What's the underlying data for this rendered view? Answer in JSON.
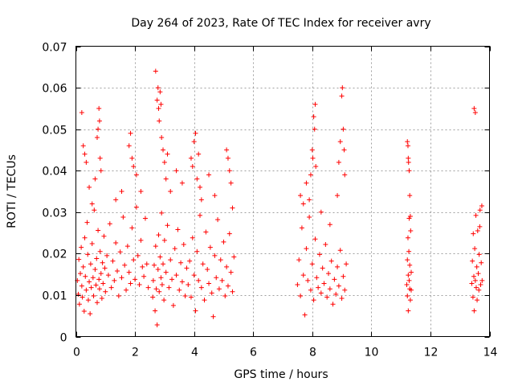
{
  "chart_data": {
    "type": "scatter",
    "title": "Day 264 of 2023, Rate Of TEC Index for receiver avry",
    "xlabel": "GPS time / hours",
    "ylabel": "ROTI / TECUs",
    "xlim": [
      0,
      14
    ],
    "ylim": [
      0,
      0.07
    ],
    "xticks": [
      0,
      2,
      4,
      6,
      8,
      10,
      12,
      14
    ],
    "xtick_labels": [
      "0",
      "2",
      "4",
      "6",
      "8",
      "10",
      "12",
      "14"
    ],
    "yticks": [
      0,
      0.01,
      0.02,
      0.03,
      0.04,
      0.05,
      0.06,
      0.07
    ],
    "ytick_labels": [
      "0",
      "0.01",
      "0.02",
      "0.03",
      "0.04",
      "0.05",
      "0.06",
      "0.07"
    ],
    "grid": true,
    "marker": "+",
    "color": "#ff0000",
    "series": [
      {
        "name": "ROTI",
        "points": [
          [
            0.05,
            0.0135
          ],
          [
            0.08,
            0.0102
          ],
          [
            0.1,
            0.0186
          ],
          [
            0.12,
            0.0078
          ],
          [
            0.15,
            0.0152
          ],
          [
            0.18,
            0.0215
          ],
          [
            0.2,
            0.0122
          ],
          [
            0.22,
            0.0095
          ],
          [
            0.25,
            0.0168
          ],
          [
            0.28,
            0.0061
          ],
          [
            0.3,
            0.0238
          ],
          [
            0.32,
            0.0145
          ],
          [
            0.35,
            0.0112
          ],
          [
            0.38,
            0.0275
          ],
          [
            0.4,
            0.0198
          ],
          [
            0.42,
            0.0088
          ],
          [
            0.45,
            0.0132
          ],
          [
            0.48,
            0.0055
          ],
          [
            0.5,
            0.0175
          ],
          [
            0.52,
            0.0118
          ],
          [
            0.55,
            0.0224
          ],
          [
            0.58,
            0.0142
          ],
          [
            0.6,
            0.0098
          ],
          [
            0.62,
            0.0305
          ],
          [
            0.65,
            0.0162
          ],
          [
            0.68,
            0.0124
          ],
          [
            0.7,
            0.0188
          ],
          [
            0.72,
            0.0082
          ],
          [
            0.75,
            0.0256
          ],
          [
            0.78,
            0.0138
          ],
          [
            0.8,
            0.0115
          ],
          [
            0.82,
            0.0205
          ],
          [
            0.85,
            0.0152
          ],
          [
            0.88,
            0.0092
          ],
          [
            0.9,
            0.0178
          ],
          [
            0.92,
            0.0128
          ],
          [
            0.95,
            0.0242
          ],
          [
            0.98,
            0.0165
          ],
          [
            1.0,
            0.0108
          ],
          [
            1.05,
            0.0195
          ],
          [
            1.1,
            0.0148
          ],
          [
            1.15,
            0.0272
          ],
          [
            1.2,
            0.0118
          ],
          [
            1.25,
            0.0182
          ],
          [
            1.3,
            0.0135
          ],
          [
            1.35,
            0.0226
          ],
          [
            1.4,
            0.0158
          ],
          [
            1.45,
            0.0098
          ],
          [
            1.5,
            0.0204
          ],
          [
            1.55,
            0.0142
          ],
          [
            1.6,
            0.0288
          ],
          [
            1.65,
            0.0172
          ],
          [
            1.7,
            0.0112
          ],
          [
            1.75,
            0.0218
          ],
          [
            1.8,
            0.0155
          ],
          [
            1.85,
            0.0128
          ],
          [
            1.9,
            0.0262
          ],
          [
            1.95,
            0.0185
          ],
          [
            2.0,
            0.0138
          ],
          [
            2.05,
            0.0312
          ],
          [
            2.1,
            0.0195
          ],
          [
            2.15,
            0.0125
          ],
          [
            2.2,
            0.0232
          ],
          [
            2.25,
            0.0168
          ],
          [
            2.3,
            0.0145
          ],
          [
            2.35,
            0.0285
          ],
          [
            2.4,
            0.0175
          ],
          [
            2.45,
            0.0118
          ],
          [
            0.2,
            0.054
          ],
          [
            0.25,
            0.046
          ],
          [
            0.3,
            0.044
          ],
          [
            0.35,
            0.042
          ],
          [
            0.45,
            0.036
          ],
          [
            0.55,
            0.032
          ],
          [
            0.65,
            0.038
          ],
          [
            0.72,
            0.048
          ],
          [
            0.75,
            0.05
          ],
          [
            0.78,
            0.055
          ],
          [
            0.8,
            0.052
          ],
          [
            0.82,
            0.043
          ],
          [
            0.85,
            0.04
          ],
          [
            1.35,
            0.033
          ],
          [
            1.55,
            0.035
          ],
          [
            1.8,
            0.046
          ],
          [
            1.85,
            0.049
          ],
          [
            1.9,
            0.043
          ],
          [
            1.95,
            0.041
          ],
          [
            2.05,
            0.039
          ],
          [
            2.2,
            0.035
          ],
          [
            2.6,
            0.0095
          ],
          [
            2.62,
            0.0135
          ],
          [
            2.65,
            0.0172
          ],
          [
            2.68,
            0.0062
          ],
          [
            2.7,
            0.0218
          ],
          [
            2.72,
            0.0115
          ],
          [
            2.75,
            0.0028
          ],
          [
            2.78,
            0.0162
          ],
          [
            2.8,
            0.0245
          ],
          [
            2.82,
            0.0108
          ],
          [
            2.85,
            0.0192
          ],
          [
            2.88,
            0.0142
          ],
          [
            2.9,
            0.0298
          ],
          [
            2.92,
            0.0125
          ],
          [
            2.95,
            0.0175
          ],
          [
            2.98,
            0.0088
          ],
          [
            3.0,
            0.0232
          ],
          [
            3.05,
            0.0155
          ],
          [
            3.1,
            0.0268
          ],
          [
            3.15,
            0.0118
          ],
          [
            3.2,
            0.0185
          ],
          [
            3.25,
            0.0138
          ],
          [
            3.3,
            0.0075
          ],
          [
            3.35,
            0.0212
          ],
          [
            3.4,
            0.0148
          ],
          [
            3.45,
            0.0258
          ],
          [
            3.5,
            0.0112
          ],
          [
            3.55,
            0.0178
          ],
          [
            3.6,
            0.0132
          ],
          [
            3.65,
            0.0222
          ],
          [
            3.7,
            0.0098
          ],
          [
            3.75,
            0.0165
          ],
          [
            2.7,
            0.064
          ],
          [
            2.75,
            0.057
          ],
          [
            2.78,
            0.06
          ],
          [
            2.8,
            0.055
          ],
          [
            2.82,
            0.052
          ],
          [
            2.85,
            0.059
          ],
          [
            2.88,
            0.056
          ],
          [
            2.9,
            0.048
          ],
          [
            2.95,
            0.045
          ],
          [
            3.0,
            0.042
          ],
          [
            3.05,
            0.038
          ],
          [
            3.1,
            0.044
          ],
          [
            3.2,
            0.035
          ],
          [
            3.4,
            0.04
          ],
          [
            3.6,
            0.037
          ],
          [
            3.8,
            0.0125
          ],
          [
            3.85,
            0.0182
          ],
          [
            3.9,
            0.0095
          ],
          [
            3.95,
            0.0238
          ],
          [
            4.0,
            0.0148
          ],
          [
            4.05,
            0.0062
          ],
          [
            4.1,
            0.0205
          ],
          [
            4.15,
            0.0135
          ],
          [
            4.2,
            0.0292
          ],
          [
            4.25,
            0.0118
          ],
          [
            4.3,
            0.0175
          ],
          [
            4.35,
            0.0088
          ],
          [
            4.4,
            0.0252
          ],
          [
            4.45,
            0.0162
          ],
          [
            4.5,
            0.0128
          ],
          [
            4.55,
            0.0215
          ],
          [
            4.6,
            0.0105
          ],
          [
            4.65,
            0.0048
          ],
          [
            4.7,
            0.0195
          ],
          [
            4.75,
            0.0142
          ],
          [
            4.8,
            0.0282
          ],
          [
            4.85,
            0.0115
          ],
          [
            4.9,
            0.0185
          ],
          [
            4.95,
            0.0135
          ],
          [
            5.0,
            0.0228
          ],
          [
            5.05,
            0.0098
          ],
          [
            5.1,
            0.0168
          ],
          [
            5.15,
            0.0122
          ],
          [
            5.2,
            0.0248
          ],
          [
            5.25,
            0.0155
          ],
          [
            5.3,
            0.0108
          ],
          [
            5.35,
            0.0192
          ],
          [
            3.9,
            0.043
          ],
          [
            3.95,
            0.041
          ],
          [
            4.0,
            0.047
          ],
          [
            4.05,
            0.049
          ],
          [
            4.1,
            0.038
          ],
          [
            4.15,
            0.044
          ],
          [
            4.2,
            0.036
          ],
          [
            4.25,
            0.033
          ],
          [
            4.5,
            0.039
          ],
          [
            4.7,
            0.034
          ],
          [
            5.1,
            0.045
          ],
          [
            5.15,
            0.043
          ],
          [
            5.2,
            0.04
          ],
          [
            5.25,
            0.037
          ],
          [
            5.3,
            0.031
          ],
          [
            7.5,
            0.0125
          ],
          [
            7.55,
            0.0185
          ],
          [
            7.6,
            0.0098
          ],
          [
            7.65,
            0.0262
          ],
          [
            7.7,
            0.0148
          ],
          [
            7.75,
            0.0052
          ],
          [
            7.8,
            0.0212
          ],
          [
            7.85,
            0.0135
          ],
          [
            7.9,
            0.0288
          ],
          [
            7.95,
            0.0112
          ],
          [
            8.0,
            0.0175
          ],
          [
            8.05,
            0.0088
          ],
          [
            8.1,
            0.0235
          ],
          [
            8.15,
            0.0142
          ],
          [
            8.2,
            0.0118
          ],
          [
            8.25,
            0.0198
          ],
          [
            8.3,
            0.0105
          ],
          [
            8.35,
            0.0165
          ],
          [
            8.4,
            0.0128
          ],
          [
            8.45,
            0.0222
          ],
          [
            8.5,
            0.0095
          ],
          [
            8.55,
            0.0152
          ],
          [
            8.6,
            0.0115
          ],
          [
            8.65,
            0.0182
          ],
          [
            8.7,
            0.0078
          ],
          [
            8.75,
            0.0138
          ],
          [
            8.8,
            0.0102
          ],
          [
            8.85,
            0.0168
          ],
          [
            8.9,
            0.0122
          ],
          [
            8.95,
            0.0208
          ],
          [
            9.0,
            0.0092
          ],
          [
            9.05,
            0.0145
          ],
          [
            9.1,
            0.0112
          ],
          [
            9.15,
            0.0175
          ],
          [
            7.6,
            0.034
          ],
          [
            7.7,
            0.032
          ],
          [
            7.8,
            0.037
          ],
          [
            7.9,
            0.033
          ],
          [
            7.95,
            0.039
          ],
          [
            8.0,
            0.045
          ],
          [
            8.02,
            0.043
          ],
          [
            8.05,
            0.053
          ],
          [
            8.08,
            0.05
          ],
          [
            8.1,
            0.056
          ],
          [
            8.12,
            0.041
          ],
          [
            8.3,
            0.03
          ],
          [
            8.6,
            0.027
          ],
          [
            8.85,
            0.034
          ],
          [
            8.9,
            0.042
          ],
          [
            8.95,
            0.047
          ],
          [
            9.0,
            0.058
          ],
          [
            9.02,
            0.06
          ],
          [
            9.05,
            0.05
          ],
          [
            9.08,
            0.045
          ],
          [
            9.1,
            0.039
          ],
          [
            11.2,
            0.0125
          ],
          [
            11.22,
            0.0185
          ],
          [
            11.22,
            0.0098
          ],
          [
            11.24,
            0.0238
          ],
          [
            11.25,
            0.0148
          ],
          [
            11.25,
            0.0062
          ],
          [
            11.27,
            0.0205
          ],
          [
            11.28,
            0.0135
          ],
          [
            11.28,
            0.0285
          ],
          [
            11.3,
            0.0115
          ],
          [
            11.3,
            0.0172
          ],
          [
            11.32,
            0.0088
          ],
          [
            11.33,
            0.0255
          ],
          [
            11.35,
            0.0155
          ],
          [
            11.35,
            0.0112
          ],
          [
            11.22,
            0.047
          ],
          [
            11.24,
            0.046
          ],
          [
            11.25,
            0.043
          ],
          [
            11.26,
            0.042
          ],
          [
            11.28,
            0.04
          ],
          [
            11.3,
            0.034
          ],
          [
            11.32,
            0.029
          ],
          [
            13.4,
            0.0128
          ],
          [
            13.42,
            0.0182
          ],
          [
            13.44,
            0.0095
          ],
          [
            13.45,
            0.0248
          ],
          [
            13.47,
            0.0145
          ],
          [
            13.48,
            0.0062
          ],
          [
            13.5,
            0.0212
          ],
          [
            13.52,
            0.0135
          ],
          [
            13.54,
            0.0292
          ],
          [
            13.55,
            0.0118
          ],
          [
            13.57,
            0.0168
          ],
          [
            13.58,
            0.0088
          ],
          [
            13.6,
            0.0255
          ],
          [
            13.62,
            0.0152
          ],
          [
            13.64,
            0.0112
          ],
          [
            13.65,
            0.0198
          ],
          [
            13.67,
            0.0265
          ],
          [
            13.68,
            0.0305
          ],
          [
            13.7,
            0.0125
          ],
          [
            13.72,
            0.0178
          ],
          [
            13.74,
            0.0315
          ],
          [
            13.75,
            0.0135
          ],
          [
            13.48,
            0.055
          ],
          [
            13.52,
            0.054
          ]
        ]
      }
    ]
  }
}
